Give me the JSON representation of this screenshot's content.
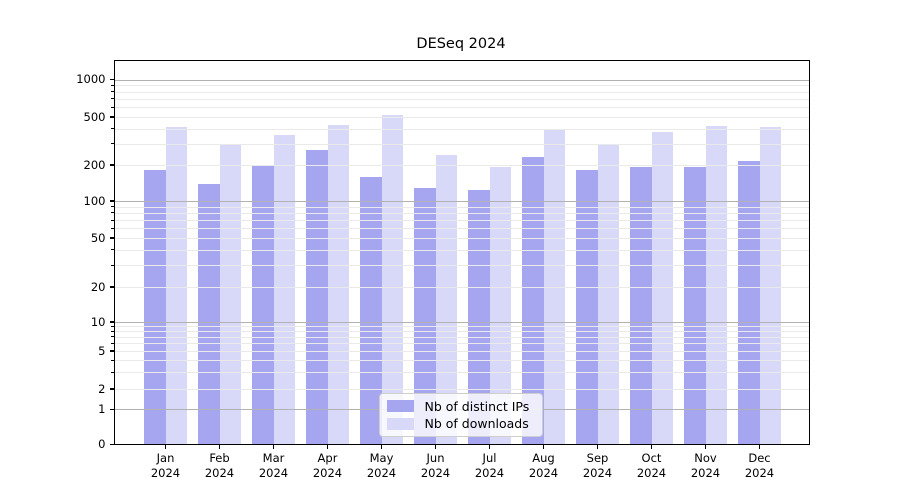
{
  "title": "DESeq 2024",
  "legend": {
    "items": [
      {
        "label": "Nb of distinct IPs",
        "color": "#a5a5f0"
      },
      {
        "label": "Nb of downloads",
        "color": "#d8d8f8"
      }
    ]
  },
  "chart_data": {
    "type": "bar",
    "title": "DESeq 2024",
    "categories": [
      "Jan 2024",
      "Feb 2024",
      "Mar 2024",
      "Apr 2024",
      "May 2024",
      "Jun 2024",
      "Jul 2024",
      "Aug 2024",
      "Sep 2024",
      "Oct 2024",
      "Nov 2024",
      "Dec 2024"
    ],
    "series": [
      {
        "name": "Nb of distinct IPs",
        "color": "#a5a5f0",
        "values": [
          182,
          138,
          198,
          265,
          158,
          128,
          124,
          233,
          181,
          192,
          192,
          216
        ]
      },
      {
        "name": "Nb of downloads",
        "color": "#d8d8f8",
        "values": [
          413,
          301,
          352,
          432,
          522,
          241,
          191,
          393,
          291,
          373,
          424,
          410
        ]
      }
    ],
    "yticks": [
      0,
      1,
      2,
      5,
      10,
      20,
      50,
      100,
      200,
      500,
      1000
    ],
    "yscale": "log-like (compressed below 10, linear below 1)",
    "ylim": [
      0,
      1400
    ],
    "grid": "horizontal major (powers of 10, gray) + minor (light gray)",
    "legend_position": "lower center"
  },
  "colors": {
    "major_grid": "#b2b2b2",
    "minor_grid": "#eaeaea",
    "spine": "#000000"
  }
}
